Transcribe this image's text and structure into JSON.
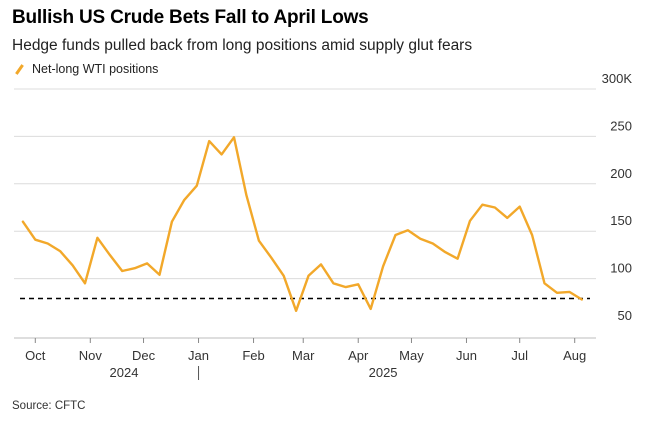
{
  "header": {
    "title": "Bullish US Crude Bets Fall to April Lows",
    "subtitle": "Hedge funds pulled back from long positions amid supply glut fears"
  },
  "legend": {
    "label": "Net-long WTI positions"
  },
  "footer": {
    "source": "Source: CFTC"
  },
  "colors": {
    "series": "#f2a82a",
    "grid": "#dcdcdc",
    "reference": "#000000"
  },
  "chart_data": {
    "type": "line",
    "title": "Bullish US Crude Bets Fall to April Lows",
    "subtitle": "Hedge funds pulled back from long positions amid supply glut fears",
    "xlabel": "",
    "ylabel": "",
    "ylim": [
      50,
      300
    ],
    "xlim": [
      "2024-09-19",
      "2025-08-13"
    ],
    "grid": true,
    "legend_position": "top-left",
    "y_ticks": [
      {
        "value": 50,
        "label": "50"
      },
      {
        "value": 100,
        "label": "100"
      },
      {
        "value": 150,
        "label": "150"
      },
      {
        "value": 200,
        "label": "200"
      },
      {
        "value": 250,
        "label": "250"
      },
      {
        "value": 300,
        "label": "300K"
      }
    ],
    "x_ticks": [
      {
        "date": "2024-10-01",
        "label": "Oct"
      },
      {
        "date": "2024-11-01",
        "label": "Nov"
      },
      {
        "date": "2024-12-01",
        "label": "Dec"
      },
      {
        "date": "2025-01-01",
        "label": "Jan"
      },
      {
        "date": "2025-02-01",
        "label": "Feb"
      },
      {
        "date": "2025-03-01",
        "label": "Mar"
      },
      {
        "date": "2025-04-01",
        "label": "Apr"
      },
      {
        "date": "2025-05-01",
        "label": "May"
      },
      {
        "date": "2025-06-01",
        "label": "Jun"
      },
      {
        "date": "2025-07-01",
        "label": "Jul"
      },
      {
        "date": "2025-08-01",
        "label": "Aug"
      }
    ],
    "year_labels": [
      {
        "date": "2024-11-20",
        "label": "2024"
      },
      {
        "date": "2025-04-15",
        "label": "2025"
      }
    ],
    "year_divider_date": "2025-01-01",
    "reference_line": {
      "value": 79,
      "style": "dashed"
    },
    "series": [
      {
        "name": "Net-long WTI positions",
        "x": [
          "2024-09-24",
          "2024-10-01",
          "2024-10-08",
          "2024-10-15",
          "2024-10-22",
          "2024-10-29",
          "2024-11-05",
          "2024-11-12",
          "2024-11-19",
          "2024-11-26",
          "2024-12-03",
          "2024-12-10",
          "2024-12-17",
          "2024-12-24",
          "2024-12-31",
          "2025-01-07",
          "2025-01-14",
          "2025-01-21",
          "2025-01-28",
          "2025-02-04",
          "2025-02-11",
          "2025-02-18",
          "2025-02-25",
          "2025-03-04",
          "2025-03-11",
          "2025-03-18",
          "2025-03-25",
          "2025-04-01",
          "2025-04-08",
          "2025-04-15",
          "2025-04-22",
          "2025-04-29",
          "2025-05-06",
          "2025-05-13",
          "2025-05-20",
          "2025-05-27",
          "2025-06-03",
          "2025-06-10",
          "2025-06-17",
          "2025-06-24",
          "2025-07-01",
          "2025-07-08",
          "2025-07-15",
          "2025-07-22",
          "2025-07-29",
          "2025-08-05"
        ],
        "values": [
          160,
          141,
          137,
          129,
          114,
          95,
          143,
          125,
          108,
          111,
          116,
          104,
          160,
          183,
          198,
          245,
          231,
          249,
          188,
          140,
          122,
          103,
          66,
          103,
          115,
          95,
          91,
          94,
          68,
          113,
          146,
          151,
          142,
          137,
          128,
          121,
          161,
          178,
          175,
          164,
          176,
          146,
          95,
          85,
          86,
          78
        ]
      }
    ]
  }
}
